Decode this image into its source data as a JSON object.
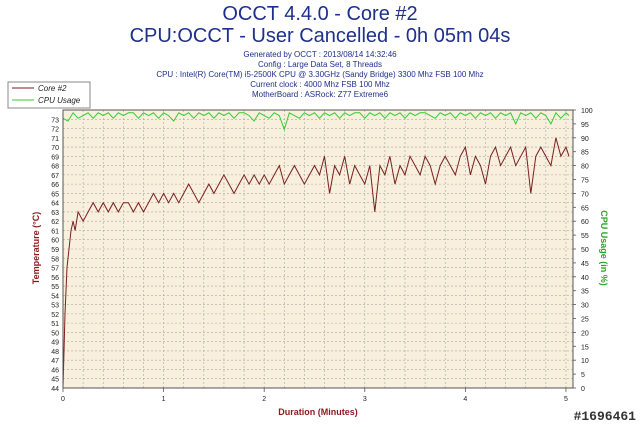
{
  "header": {
    "title": "OCCT 4.4.0 - Core #2",
    "subtitle": "CPU:OCCT - User Cancelled - 0h 05m 04s",
    "info_lines": [
      "Generated by OCCT : 2013/08/14 14:32:46",
      "Config : Large Data Set, 8 Threads",
      "CPU : Intel(R) Core(TM) i5-2500K CPU @ 3.30GHz (Sandy Bridge) 3300 Mhz FSB 100 Mhz",
      "Current clock : 4000 Mhz FSB 100 Mhz",
      "MotherBoard : ASRock: Z77 Extreme6"
    ]
  },
  "watermark": "#1696461",
  "colors": {
    "title": "#1f2f8c",
    "core_series": "#7a1f1f",
    "cpu_series": "#33cc33",
    "plot_background": "#f8efdc",
    "grid": "#a8a8a8",
    "xlabel": "#8b1a1a",
    "ylabel_left": "#8b1a1a",
    "ylabel_right": "#2aa52a"
  },
  "chart_data": {
    "type": "line",
    "xlabel": "Duration (Minutes)",
    "ylabel": "Temperature (°C)",
    "y2label": "CPU Usage (in %)",
    "xlim": [
      0,
      5.07
    ],
    "ylim": [
      44,
      74
    ],
    "y2lim": [
      0,
      100
    ],
    "x_ticks": [
      0,
      1,
      2,
      3,
      4,
      5
    ],
    "y_ticks": [
      44,
      45,
      46,
      47,
      48,
      49,
      50,
      51,
      52,
      53,
      54,
      55,
      56,
      57,
      58,
      59,
      60,
      61,
      62,
      63,
      64,
      65,
      66,
      67,
      68,
      69,
      70,
      71,
      72,
      73
    ],
    "y2_ticks": [
      0,
      5,
      10,
      15,
      20,
      25,
      30,
      35,
      40,
      45,
      50,
      55,
      60,
      65,
      70,
      75,
      80,
      85,
      90,
      95,
      100
    ],
    "grid": true,
    "legend_position": "top-left",
    "series": [
      {
        "name": "Core #2",
        "axis": "left",
        "x": [
          0,
          0.02,
          0.04,
          0.06,
          0.08,
          0.1,
          0.12,
          0.15,
          0.2,
          0.25,
          0.3,
          0.35,
          0.4,
          0.45,
          0.5,
          0.55,
          0.6,
          0.65,
          0.7,
          0.75,
          0.8,
          0.85,
          0.9,
          0.95,
          1.0,
          1.05,
          1.1,
          1.15,
          1.2,
          1.25,
          1.3,
          1.35,
          1.4,
          1.45,
          1.5,
          1.55,
          1.6,
          1.65,
          1.7,
          1.75,
          1.8,
          1.85,
          1.9,
          1.95,
          2.0,
          2.05,
          2.1,
          2.15,
          2.2,
          2.25,
          2.3,
          2.35,
          2.4,
          2.45,
          2.5,
          2.55,
          2.6,
          2.65,
          2.7,
          2.75,
          2.8,
          2.85,
          2.9,
          2.95,
          3.0,
          3.05,
          3.1,
          3.15,
          3.2,
          3.25,
          3.3,
          3.35,
          3.4,
          3.45,
          3.5,
          3.55,
          3.6,
          3.65,
          3.7,
          3.75,
          3.8,
          3.85,
          3.9,
          3.95,
          4.0,
          4.05,
          4.1,
          4.15,
          4.2,
          4.25,
          4.3,
          4.35,
          4.4,
          4.45,
          4.5,
          4.55,
          4.6,
          4.65,
          4.7,
          4.75,
          4.8,
          4.85,
          4.9,
          4.95,
          5.0,
          5.03
        ],
        "values": [
          44,
          52,
          57,
          59,
          61,
          62,
          61,
          63,
          62,
          63,
          64,
          63,
          64,
          63,
          64,
          63,
          64,
          64,
          63,
          64,
          63,
          64,
          65,
          64,
          65,
          64,
          65,
          64,
          65,
          66,
          65,
          64,
          65,
          66,
          65,
          66,
          67,
          66,
          65,
          66,
          67,
          66,
          67,
          66,
          67,
          66,
          67,
          68,
          66,
          67,
          68,
          67,
          66,
          67,
          68,
          67,
          69,
          65,
          68,
          67,
          69,
          66,
          68,
          67,
          66,
          68,
          63,
          68,
          67,
          69,
          66,
          68,
          67,
          69,
          68,
          67,
          69,
          68,
          66,
          68,
          69,
          68,
          67,
          69,
          70,
          67,
          69,
          68,
          66,
          69,
          70,
          68,
          69,
          70,
          68,
          69,
          70,
          65,
          69,
          70,
          69,
          68,
          71,
          69,
          70,
          69
        ]
      },
      {
        "name": "CPU Usage",
        "axis": "right",
        "x": [
          0,
          0.05,
          0.1,
          0.15,
          0.2,
          0.25,
          0.3,
          0.35,
          0.4,
          0.45,
          0.5,
          0.55,
          0.6,
          0.65,
          0.7,
          0.75,
          0.8,
          0.85,
          0.9,
          0.95,
          1.0,
          1.05,
          1.1,
          1.15,
          1.2,
          1.25,
          1.3,
          1.35,
          1.4,
          1.45,
          1.5,
          1.55,
          1.6,
          1.65,
          1.7,
          1.75,
          1.8,
          1.85,
          1.9,
          1.95,
          2.0,
          2.05,
          2.1,
          2.15,
          2.2,
          2.25,
          2.3,
          2.35,
          2.4,
          2.45,
          2.5,
          2.55,
          2.6,
          2.65,
          2.7,
          2.75,
          2.8,
          2.85,
          2.9,
          2.95,
          3.0,
          3.05,
          3.1,
          3.15,
          3.2,
          3.25,
          3.3,
          3.35,
          3.4,
          3.45,
          3.5,
          3.55,
          3.6,
          3.65,
          3.7,
          3.75,
          3.8,
          3.85,
          3.9,
          3.95,
          4.0,
          4.05,
          4.1,
          4.15,
          4.2,
          4.25,
          4.3,
          4.35,
          4.4,
          4.45,
          4.5,
          4.55,
          4.6,
          4.65,
          4.7,
          4.75,
          4.8,
          4.85,
          4.9,
          4.95,
          5.0,
          5.03
        ],
        "values": [
          97,
          96,
          99,
          97,
          98,
          99,
          97,
          99,
          98,
          99,
          97,
          99,
          98,
          99,
          99,
          97,
          99,
          98,
          99,
          97,
          99,
          98,
          96,
          99,
          98,
          99,
          97,
          99,
          98,
          99,
          97,
          99,
          98,
          99,
          97,
          99,
          99,
          98,
          96,
          99,
          98,
          97,
          99,
          98,
          93,
          99,
          98,
          97,
          99,
          98,
          99,
          97,
          99,
          98,
          99,
          97,
          99,
          98,
          99,
          99,
          97,
          99,
          98,
          99,
          97,
          99,
          98,
          99,
          97,
          99,
          98,
          99,
          99,
          98,
          97,
          99,
          98,
          99,
          97,
          99,
          98,
          99,
          97,
          99,
          98,
          99,
          97,
          99,
          98,
          99,
          95,
          99,
          98,
          99,
          97,
          99,
          98,
          95,
          99,
          97,
          99,
          98
        ]
      }
    ]
  }
}
